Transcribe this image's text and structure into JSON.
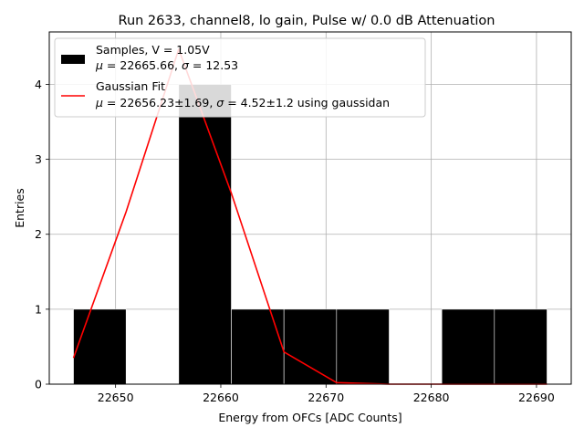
{
  "chart_data": {
    "type": "bar",
    "title": "Run 2633, channel8, lo gain, Pulse w/ 0.0 dB Attenuation",
    "xlabel": "Energy from OFCs [ADC Counts]",
    "ylabel": "Entries",
    "xlim": [
      22643.7,
      22693.3
    ],
    "ylim": [
      0,
      4.7
    ],
    "grid": true,
    "legend_position": "upper-left",
    "xticks": [
      "22650",
      "22660",
      "22670",
      "22680",
      "22690"
    ],
    "xtick_values": [
      22650,
      22660,
      22670,
      22680,
      22690
    ],
    "yticks": [
      "0",
      "1",
      "2",
      "3",
      "4"
    ],
    "ytick_values": [
      0,
      1,
      2,
      3,
      4
    ],
    "histogram": {
      "bin_edges": [
        22646,
        22651,
        22656,
        22661,
        22666,
        22671,
        22676,
        22681,
        22686,
        22691
      ],
      "counts": [
        1,
        0,
        4,
        1,
        1,
        1,
        0,
        1,
        1
      ],
      "color": "#000000",
      "edge_color": "#ffffff"
    },
    "fit_curve": {
      "color": "#ff0000",
      "x": [
        22646,
        22651,
        22656,
        22661,
        22666,
        22671,
        22676,
        22681,
        22686,
        22691
      ],
      "y": [
        0.35,
        2.3,
        4.47,
        2.55,
        0.43,
        0.02,
        0.0,
        0.0,
        0.0,
        0.0
      ]
    },
    "legend": [
      {
        "kind": "patch",
        "color": "#000000",
        "line1": "Samples, V = 1.05V",
        "line2_pre": "μ",
        "line2_post": " = 22665.66, ",
        "line2_sym": "σ",
        "line2_tail": " = 12.53"
      },
      {
        "kind": "line",
        "color": "#ff0000",
        "line1": "Gaussian Fit",
        "line2_pre": "μ",
        "line2_post": " = 22656.23±1.69, ",
        "line2_sym": "σ",
        "line2_tail": " = 4.52±1.2 using gaussidan"
      }
    ]
  }
}
